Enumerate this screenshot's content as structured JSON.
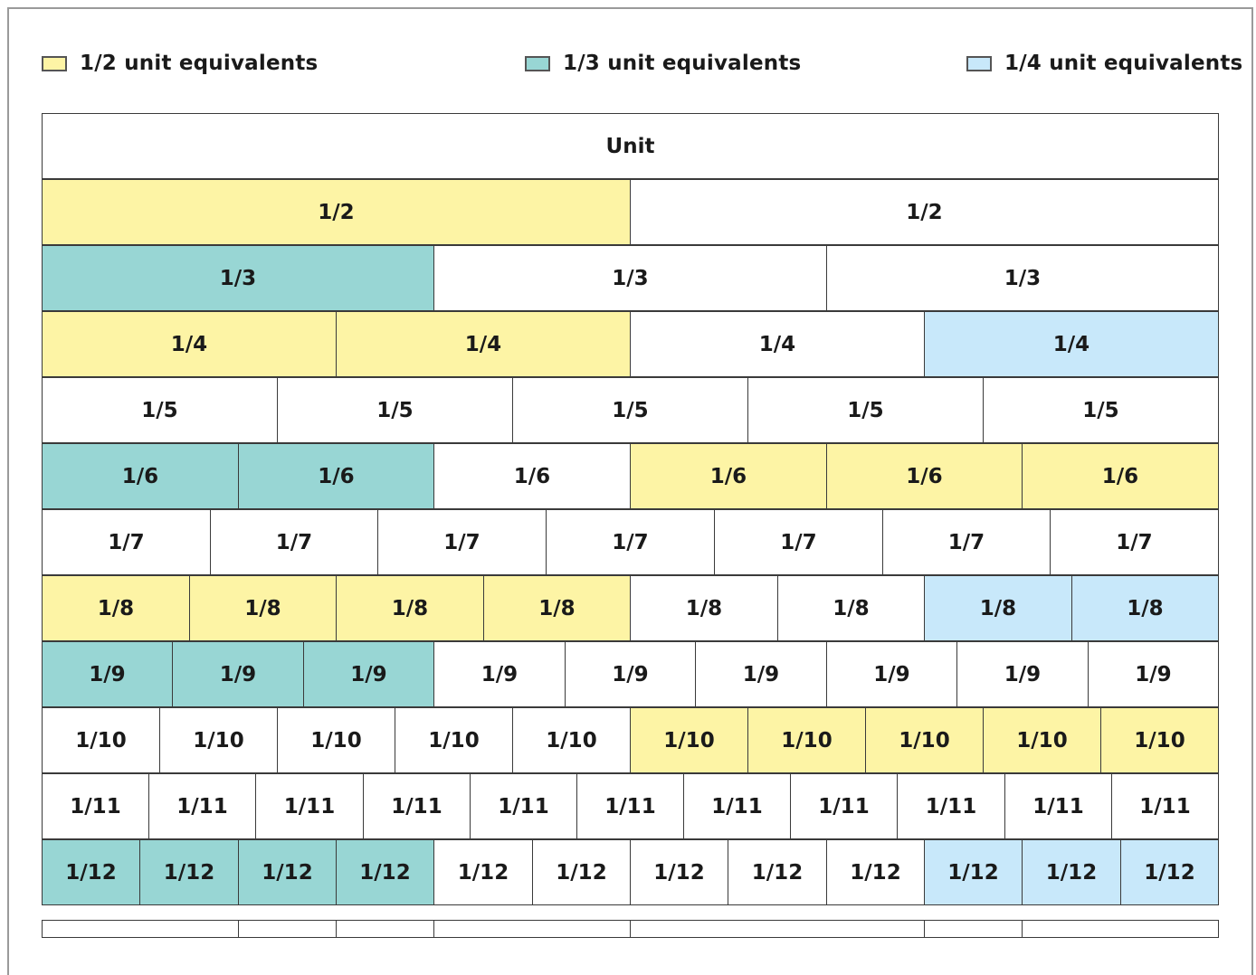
{
  "legend": [
    {
      "label": "1/2 unit equivalents",
      "color": "#fdf4a5"
    },
    {
      "label": "1/3 unit equivalents",
      "color": "#98d6d4"
    },
    {
      "label": "1/4 unit equivalents",
      "color": "#c8e8fa"
    }
  ],
  "colors": {
    "half": "#fdf4a5",
    "third": "#98d6d4",
    "quarter": "#c8e8fa",
    "none": "#ffffff",
    "border": "#3a3a3a"
  },
  "wall": [
    {
      "label": "Unit",
      "count": 1,
      "highlights": [
        {
          "start": 0,
          "end": 1,
          "group": "none"
        }
      ]
    },
    {
      "label": "1/2",
      "count": 2,
      "highlights": [
        {
          "start": 0,
          "end": 1,
          "group": "half"
        }
      ]
    },
    {
      "label": "1/3",
      "count": 3,
      "highlights": [
        {
          "start": 0,
          "end": 1,
          "group": "third"
        }
      ]
    },
    {
      "label": "1/4",
      "count": 4,
      "highlights": [
        {
          "start": 0,
          "end": 2,
          "group": "half"
        },
        {
          "start": 3,
          "end": 4,
          "group": "quarter"
        }
      ]
    },
    {
      "label": "1/5",
      "count": 5,
      "highlights": []
    },
    {
      "label": "1/6",
      "count": 6,
      "highlights": [
        {
          "start": 0,
          "end": 2,
          "group": "third"
        },
        {
          "start": 3,
          "end": 6,
          "group": "half"
        }
      ]
    },
    {
      "label": "1/7",
      "count": 7,
      "highlights": []
    },
    {
      "label": "1/8",
      "count": 8,
      "highlights": [
        {
          "start": 0,
          "end": 4,
          "group": "half"
        },
        {
          "start": 6,
          "end": 8,
          "group": "quarter"
        }
      ]
    },
    {
      "label": "1/9",
      "count": 9,
      "highlights": [
        {
          "start": 0,
          "end": 3,
          "group": "third"
        }
      ]
    },
    {
      "label": "1/10",
      "count": 10,
      "highlights": [
        {
          "start": 5,
          "end": 10,
          "group": "half"
        }
      ]
    },
    {
      "label": "1/11",
      "count": 11,
      "highlights": []
    },
    {
      "label": "1/12",
      "count": 12,
      "highlights": [
        {
          "start": 0,
          "end": 4,
          "group": "third"
        },
        {
          "start": 9,
          "end": 12,
          "group": "quarter"
        }
      ]
    }
  ],
  "bottom_strip_boundaries": [
    0,
    1,
    1.5,
    2,
    3,
    4.5,
    5,
    6
  ]
}
